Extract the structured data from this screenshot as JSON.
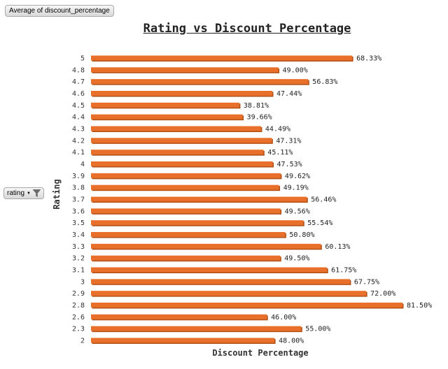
{
  "field_buttons": {
    "value_field": "Average of discount_percentage",
    "row_field": "rating"
  },
  "colors": {
    "bar": "#e8702a",
    "bar_shadow": "#b24f14"
  },
  "chart_data": {
    "type": "bar",
    "orientation": "horizontal",
    "title": "Rating vs Discount Percentage",
    "xlabel": "Discount Percentage",
    "ylabel": "Rating",
    "categories": [
      "5",
      "4.8",
      "4.7",
      "4.6",
      "4.5",
      "4.4",
      "4.3",
      "4.2",
      "4.1",
      "4",
      "3.9",
      "3.8",
      "3.7",
      "3.6",
      "3.5",
      "3.4",
      "3.3",
      "3.2",
      "3.1",
      "3",
      "2.9",
      "2.8",
      "2.6",
      "2.3",
      "2"
    ],
    "values": [
      68.33,
      49.0,
      56.83,
      47.44,
      38.81,
      39.66,
      44.49,
      47.31,
      45.11,
      47.53,
      49.62,
      49.19,
      56.46,
      49.56,
      55.54,
      50.8,
      60.13,
      49.5,
      61.75,
      67.75,
      72.0,
      81.5,
      46.0,
      55.0,
      48.0
    ],
    "data_labels": [
      "68.33%",
      "49.00%",
      "56.83%",
      "47.44%",
      "38.81%",
      "39.66%",
      "44.49%",
      "47.31%",
      "45.11%",
      "47.53%",
      "49.62%",
      "49.19%",
      "56.46%",
      "49.56%",
      "55.54%",
      "50.80%",
      "60.13%",
      "49.50%",
      "61.75%",
      "67.75%",
      "72.00%",
      "81.50%",
      "46.00%",
      "55.00%",
      "48.00%"
    ],
    "xlim": [
      0,
      81.5
    ],
    "grid": false,
    "legend": "none"
  }
}
